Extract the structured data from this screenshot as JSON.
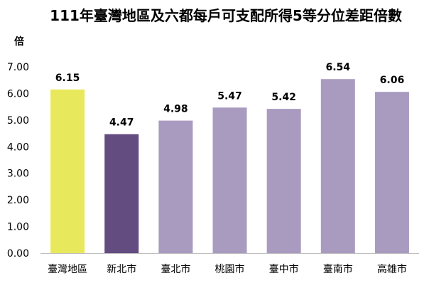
{
  "chart_data": {
    "type": "bar",
    "title": "111年臺灣地區及六都每戶可支配所得5等分位差距倍數",
    "ylabel": "倍",
    "xlabel": "",
    "ylim": [
      0,
      7
    ],
    "yticks": [
      "0.00",
      "1.00",
      "2.00",
      "3.00",
      "4.00",
      "5.00",
      "6.00",
      "7.00"
    ],
    "categories": [
      "臺灣地區",
      "新北市",
      "臺北市",
      "桃園市",
      "臺中市",
      "臺南市",
      "高雄市"
    ],
    "values": [
      6.15,
      4.47,
      4.98,
      5.47,
      5.42,
      6.54,
      6.06
    ],
    "value_labels": [
      "6.15",
      "4.47",
      "4.98",
      "5.47",
      "5.42",
      "6.54",
      "6.06"
    ],
    "grid": false,
    "legend": "none",
    "colors": [
      "#e8e85c",
      "#634c7f",
      "#a99bbf",
      "#a99bbf",
      "#a99bbf",
      "#a99bbf",
      "#a99bbf"
    ],
    "axis_color": "#bfbfbf"
  }
}
